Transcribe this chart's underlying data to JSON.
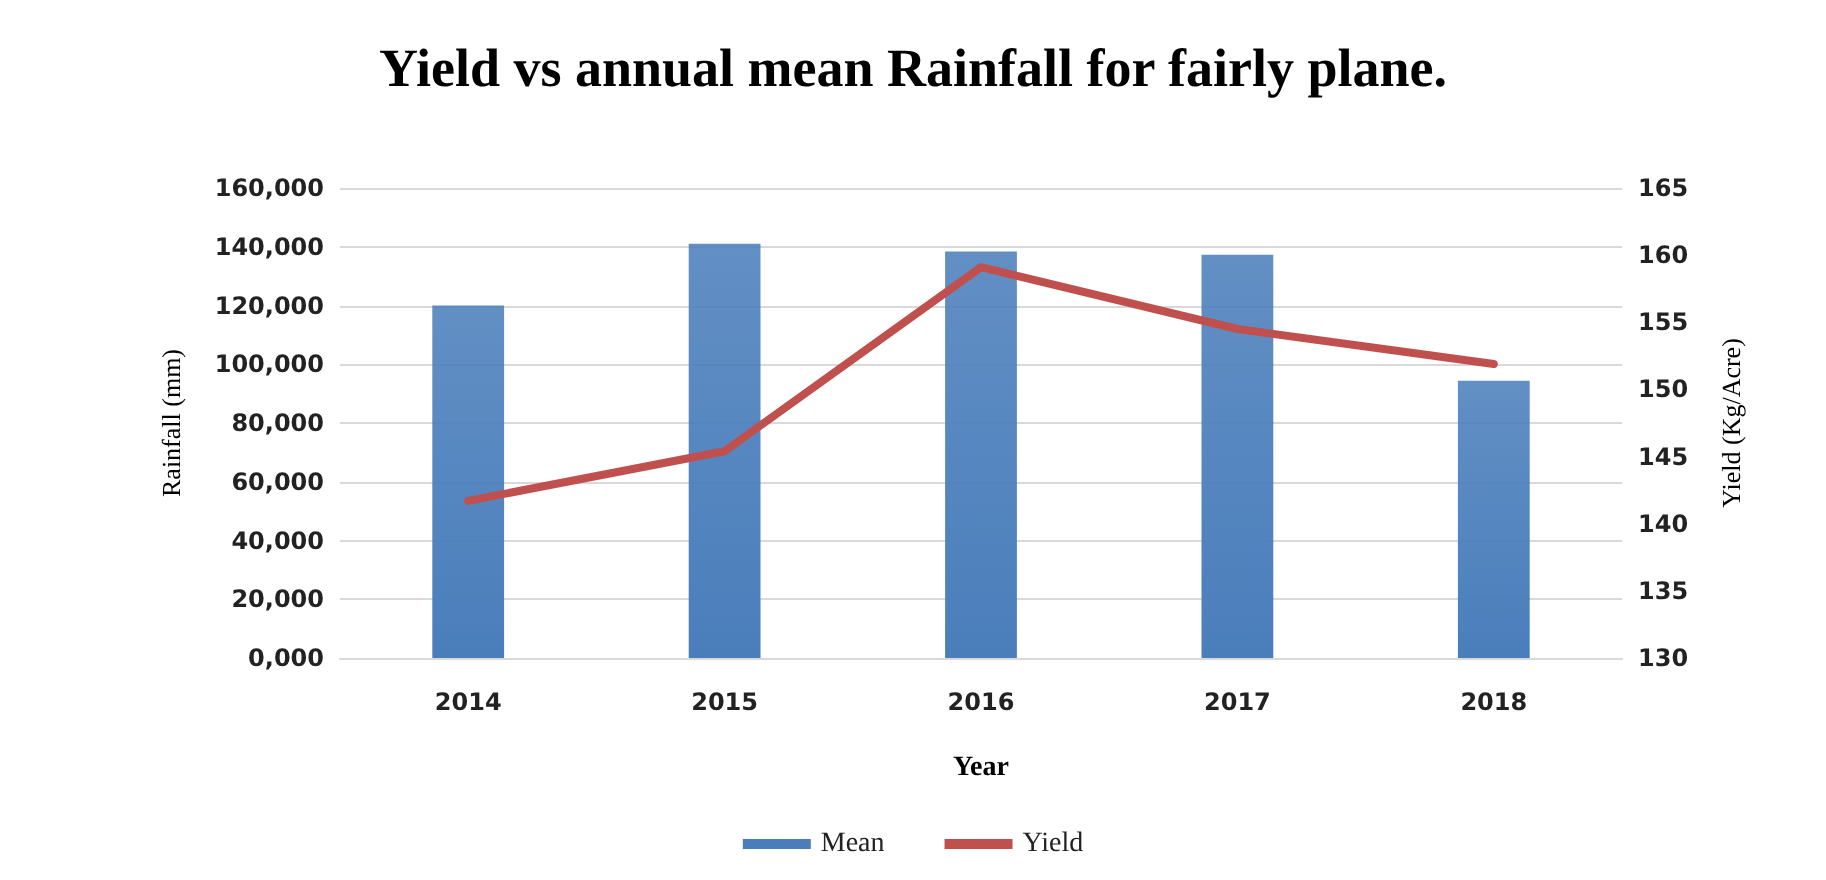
{
  "chart_data": {
    "type": "bar",
    "title": "Yield vs annual mean Rainfall for fairly plane.",
    "xlabel": "Year",
    "ylabel": "Rainfall (mm)",
    "y2label": "Yield (Kg/Acre)",
    "categories": [
      "2014",
      "2015",
      "2016",
      "2017",
      "2018"
    ],
    "series": [
      {
        "name": "Mean",
        "color": "#4a7ebb",
        "values": [
          120000,
          141000,
          138400,
          137300,
          94400
        ]
      },
      {
        "name": "Yield",
        "type": "line",
        "axis": "y2",
        "color": "#c0504d",
        "values": [
          141.7,
          145.4,
          159.1,
          154.5,
          151.9
        ]
      }
    ],
    "ylim": [
      0,
      160000
    ],
    "yticks": [
      {
        "value": 0,
        "label": "0,000"
      },
      {
        "value": 20000,
        "label": "20,000"
      },
      {
        "value": 40000,
        "label": "40,000"
      },
      {
        "value": 60000,
        "label": "60,000"
      },
      {
        "value": 80000,
        "label": "80,000"
      },
      {
        "value": 100000,
        "label": "100,000"
      },
      {
        "value": 120000,
        "label": "120,000"
      },
      {
        "value": 140000,
        "label": "140,000"
      },
      {
        "value": 160000,
        "label": "160,000"
      }
    ],
    "y2lim": [
      130,
      165
    ],
    "y2ticks": [
      130,
      135,
      140,
      145,
      150,
      155,
      160,
      165
    ],
    "grid": "y",
    "legend": "bottom",
    "marker": "none",
    "line_style": "solid"
  }
}
